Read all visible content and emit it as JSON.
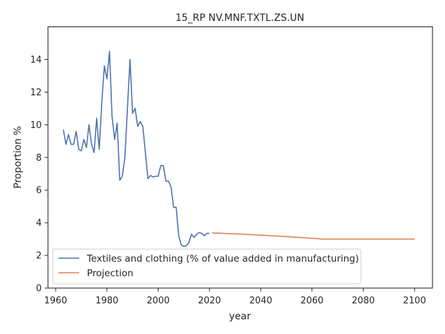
{
  "chart_data": {
    "type": "line",
    "title": "15_RP NV.MNF.TXTL.ZS.UN",
    "xlabel": "year",
    "ylabel": "Proportion %",
    "xlim": [
      1957,
      2107
    ],
    "ylim": [
      0,
      16
    ],
    "xticks": [
      1960,
      1980,
      2000,
      2020,
      2040,
      2060,
      2080,
      2100
    ],
    "yticks": [
      0,
      2,
      4,
      6,
      8,
      10,
      12,
      14
    ],
    "grid": false,
    "legend_position": "lower-left",
    "series": [
      {
        "name": "Textiles and clothing (% of value added in manufacturing)",
        "color": "#4c72b0",
        "x": [
          1963,
          1964,
          1965,
          1966,
          1967,
          1968,
          1969,
          1970,
          1971,
          1972,
          1973,
          1974,
          1975,
          1976,
          1977,
          1978,
          1979,
          1980,
          1981,
          1982,
          1983,
          1984,
          1985,
          1986,
          1987,
          1988,
          1989,
          1990,
          1991,
          1992,
          1993,
          1994,
          1995,
          1996,
          1997,
          1998,
          1999,
          2000,
          2001,
          2002,
          2003,
          2004,
          2005,
          2006,
          2007,
          2008,
          2009,
          2010,
          2011,
          2012,
          2013,
          2014,
          2015,
          2016,
          2017,
          2018,
          2019,
          2020
        ],
        "y": [
          9.7,
          8.8,
          9.4,
          8.8,
          8.8,
          9.6,
          8.5,
          8.4,
          9.1,
          8.6,
          10.0,
          8.8,
          8.3,
          10.4,
          8.5,
          11.4,
          13.6,
          12.8,
          14.5,
          10.5,
          9.1,
          10.1,
          6.6,
          6.85,
          8.0,
          11.0,
          14.0,
          10.7,
          11.0,
          9.9,
          10.2,
          9.9,
          8.3,
          6.7,
          6.9,
          6.8,
          6.85,
          6.85,
          7.5,
          7.5,
          6.55,
          6.55,
          6.2,
          4.95,
          4.95,
          3.2,
          2.65,
          2.55,
          2.6,
          2.8,
          3.3,
          3.1,
          3.3,
          3.4,
          3.35,
          3.2,
          3.35,
          3.35
        ]
      },
      {
        "name": "Projection",
        "color": "#dd8452",
        "x": [
          2021,
          2030,
          2040,
          2050,
          2060,
          2064,
          2070,
          2080,
          2090,
          2100
        ],
        "y": [
          3.38,
          3.32,
          3.24,
          3.15,
          3.05,
          3.0,
          3.0,
          3.0,
          3.0,
          3.0
        ]
      }
    ]
  }
}
